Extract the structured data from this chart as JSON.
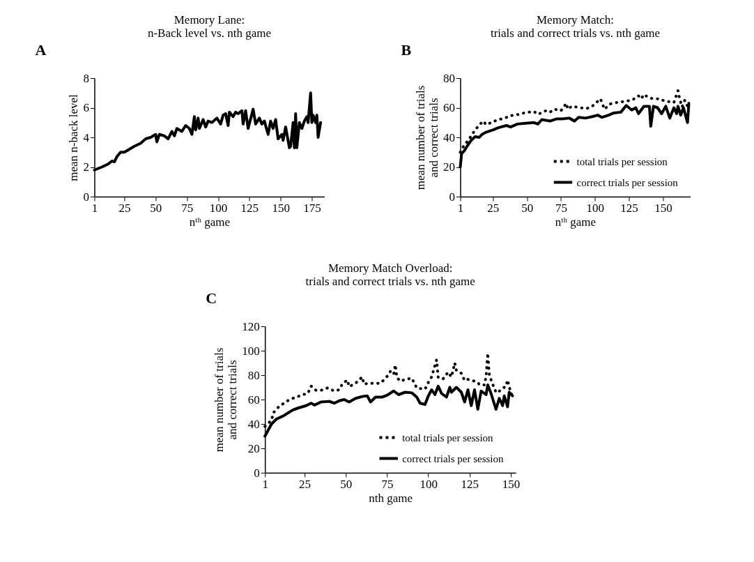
{
  "chart_data": [
    {
      "type": "line",
      "title": "Memory Lane:\nn-Back level vs. nth game",
      "xlabel": "nᵗʰ game",
      "ylabel": "mean n-back level",
      "annotations": [
        "A"
      ],
      "xlim": [
        1,
        185
      ],
      "xticks": [
        1,
        25,
        50,
        75,
        100,
        125,
        150,
        175
      ],
      "ylim": [
        0,
        8
      ],
      "yticks": [
        0,
        2,
        4,
        6,
        8
      ],
      "grid": false,
      "legend": false,
      "series": [
        {
          "color": "#000000",
          "line_style": "solid",
          "x": [
            1,
            7,
            12,
            15,
            17,
            19,
            22,
            25,
            29,
            33,
            38,
            42,
            46,
            50,
            51,
            53,
            57,
            60,
            63,
            65,
            67,
            71,
            74,
            77,
            79,
            81,
            82,
            84,
            85,
            88,
            90,
            92,
            95,
            99,
            102,
            104,
            106,
            108,
            109,
            112,
            114,
            116,
            119,
            120,
            122,
            124,
            128,
            130,
            133,
            135,
            137,
            140,
            142,
            144,
            146,
            148,
            151,
            152,
            154,
            157,
            158,
            160,
            161,
            162,
            163,
            165,
            167,
            169,
            171,
            172,
            174,
            175,
            176,
            178,
            179,
            180,
            182
          ],
          "values": [
            1.8,
            2.0,
            2.2,
            2.4,
            2.35,
            2.7,
            3.0,
            3.0,
            3.2,
            3.4,
            3.6,
            3.9,
            4.0,
            4.2,
            3.7,
            4.2,
            4.1,
            3.9,
            4.4,
            4.1,
            4.6,
            4.4,
            4.8,
            4.6,
            4.2,
            5.4,
            4.5,
            5.3,
            4.6,
            5.2,
            4.7,
            5.1,
            5.0,
            5.3,
            4.9,
            5.5,
            5.6,
            4.8,
            5.7,
            5.4,
            5.7,
            5.6,
            5.8,
            4.9,
            5.8,
            4.6,
            5.9,
            4.9,
            5.3,
            4.9,
            5.1,
            4.2,
            5.1,
            4.6,
            5.2,
            3.9,
            4.2,
            3.8,
            4.7,
            3.3,
            3.4,
            5.0,
            3.3,
            5.6,
            3.3,
            5.0,
            4.6,
            5.1,
            5.4,
            5.0,
            7.0,
            5.0,
            5.5,
            5.0,
            5.5,
            4.0,
            5.0
          ]
        }
      ]
    },
    {
      "type": "line",
      "title": "Memory Match:\ntrials and correct trials vs. nth game",
      "xlabel": "nᵗʰ game",
      "ylabel": "mean number of trials\nand correct trials",
      "annotations": [
        "B"
      ],
      "xlim": [
        1,
        170
      ],
      "xticks": [
        1,
        25,
        50,
        75,
        100,
        125,
        150
      ],
      "ylim": [
        0,
        80
      ],
      "yticks": [
        0,
        20,
        40,
        60,
        80
      ],
      "grid": false,
      "legend": "bottom right",
      "series": [
        {
          "name": "total trials per session",
          "color": "#000000",
          "line_style": "dotted",
          "x": [
            1,
            4,
            7,
            9,
            12,
            15,
            18,
            20,
            25,
            29,
            34,
            37,
            44,
            48,
            55,
            58,
            64,
            67,
            70,
            75,
            79,
            80,
            83,
            89,
            94,
            98,
            101,
            104,
            107,
            111,
            116,
            120,
            123,
            127,
            132,
            134,
            136,
            139,
            143,
            148,
            151,
            155,
            158,
            161,
            162,
            164,
            166,
            168
          ],
          "values": [
            30,
            35,
            38,
            41,
            45,
            48.5,
            51,
            48.5,
            50.5,
            52,
            53,
            54.5,
            55.5,
            56.5,
            57.5,
            55.5,
            58,
            57,
            59,
            58,
            63,
            59,
            61,
            60,
            59.5,
            61,
            63.5,
            66,
            59,
            62.5,
            63.5,
            64,
            64.5,
            65,
            68,
            66,
            69,
            67,
            66,
            66,
            64.5,
            64,
            63.5,
            71.5,
            67,
            60.5,
            65,
            61
          ]
        },
        {
          "name": "correct trials per session",
          "color": "#000000",
          "line_style": "solid",
          "x": [
            1,
            2,
            4,
            6,
            9,
            12,
            15,
            17,
            20,
            25,
            29,
            35,
            38,
            43,
            49,
            55,
            58,
            61,
            67,
            72,
            76,
            81,
            85,
            88,
            93,
            98,
            102,
            105,
            110,
            114,
            119,
            123,
            127,
            130,
            132,
            136,
            140,
            141,
            143,
            146,
            149,
            152,
            155,
            158,
            160,
            161,
            163,
            165,
            168,
            169
          ],
          "values": [
            20,
            29,
            31,
            34,
            38,
            40.5,
            40,
            42,
            43.5,
            45,
            46.5,
            48,
            47,
            49,
            49.5,
            50,
            49,
            52,
            51,
            52.5,
            52.5,
            53,
            51,
            53.5,
            53,
            54,
            55,
            53.5,
            55,
            56.5,
            57,
            61.5,
            58.5,
            60,
            56,
            61,
            61,
            47.5,
            61,
            60,
            56,
            61,
            53,
            60,
            56,
            61,
            55,
            60,
            50,
            63
          ]
        }
      ]
    },
    {
      "type": "line",
      "title": "Memory Match Overload:\ntrials and correct trials vs. nth game",
      "xlabel": "nth game",
      "ylabel": "mean number of trials\nand correct trials",
      "annotations": [
        "C"
      ],
      "xlim": [
        1,
        153
      ],
      "xticks": [
        1,
        25,
        50,
        75,
        100,
        125,
        150
      ],
      "ylim": [
        0,
        120
      ],
      "yticks": [
        0,
        20,
        40,
        60,
        80,
        100,
        120
      ],
      "grid": false,
      "legend": "bottom right",
      "series": [
        {
          "name": "total trials per session",
          "color": "#000000",
          "line_style": "dotted",
          "x": [
            1,
            5,
            6,
            9,
            13,
            16,
            20,
            24,
            27,
            29,
            32,
            35,
            39,
            43,
            46,
            48,
            51,
            52,
            56,
            60,
            61,
            64,
            68,
            71,
            73,
            76,
            77,
            79,
            80,
            81,
            83,
            86,
            90,
            93,
            95,
            98,
            100,
            102,
            105,
            106,
            109,
            112,
            114,
            116,
            117,
            120,
            122,
            124,
            127,
            130,
            131,
            134,
            135,
            136,
            137,
            139,
            141,
            142,
            145,
            147,
            148,
            150,
            151
          ],
          "values": [
            38,
            43,
            49,
            53.5,
            57.5,
            60,
            62,
            64,
            65,
            71,
            67.5,
            67.5,
            69.5,
            67,
            68,
            73,
            76,
            70.5,
            73.5,
            78.5,
            72.5,
            73.5,
            73,
            73.5,
            76,
            80.5,
            83,
            80.5,
            88.5,
            78,
            75,
            76.5,
            77.5,
            69.5,
            69,
            68.5,
            74,
            78.5,
            92.5,
            78,
            77,
            82.5,
            78.5,
            90,
            84,
            81.5,
            75.5,
            76.5,
            75.5,
            74,
            72,
            72,
            79,
            98,
            80,
            72.5,
            66,
            65.5,
            69.5,
            70.5,
            76,
            65.5,
            63
          ]
        },
        {
          "name": "correct trials per session",
          "color": "#000000",
          "line_style": "solid",
          "x": [
            1,
            3,
            5,
            8,
            12,
            15,
            18,
            21,
            26,
            29,
            31,
            35,
            40,
            43,
            46,
            49,
            52,
            56,
            60,
            63,
            65,
            68,
            72,
            75,
            79,
            82,
            86,
            90,
            93,
            95,
            98,
            100,
            102,
            104,
            106,
            108,
            111,
            113,
            114,
            117,
            120,
            122,
            124,
            126,
            128,
            130,
            132,
            135,
            136,
            138,
            141,
            143,
            145,
            146,
            148,
            149,
            151
          ],
          "values": [
            30,
            35,
            40,
            44,
            46.5,
            49,
            51.5,
            53,
            55,
            57,
            55.5,
            58,
            58.5,
            57,
            59,
            60,
            58,
            61,
            62.5,
            63,
            58,
            62,
            62,
            63.5,
            67,
            64,
            66,
            65.5,
            62,
            57,
            56,
            63,
            68,
            64,
            71,
            65,
            62,
            70,
            66,
            70,
            66,
            58,
            68,
            55,
            68,
            52,
            67,
            64,
            72,
            65,
            52,
            61,
            55,
            63,
            54,
            66,
            63
          ]
        }
      ]
    }
  ]
}
